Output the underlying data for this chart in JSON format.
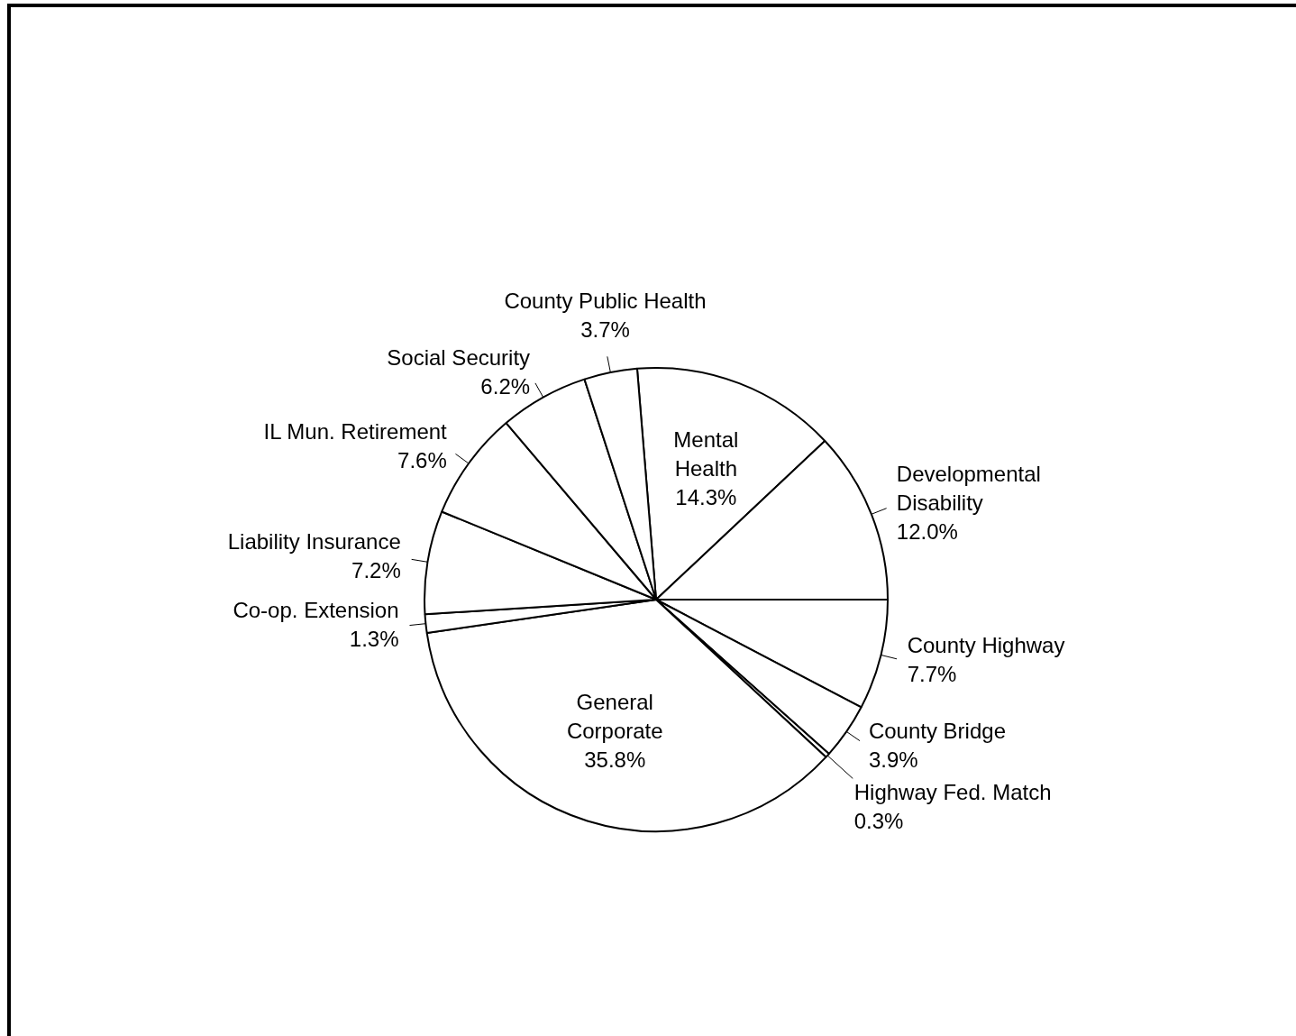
{
  "chart_data": {
    "type": "pie",
    "categories": [
      "Mental Health",
      "Developmental Disability",
      "County Highway",
      "County Bridge",
      "Highway Fed. Match",
      "General Corporate",
      "Co-op. Extension",
      "Liability Insurance",
      "IL Mun. Retirement",
      "Social Security",
      "County Public Health"
    ],
    "values": [
      14.3,
      12.0,
      7.7,
      3.9,
      0.3,
      35.8,
      1.3,
      7.2,
      7.6,
      6.2,
      3.7
    ],
    "value_labels": [
      "14.3%",
      "12.0%",
      "7.7%",
      "3.9%",
      "0.3%",
      "35.8%",
      "1.3%",
      "7.2%",
      "7.6%",
      "6.2%",
      "3.7%"
    ],
    "colors": [
      "#ffffff",
      "#ffffff",
      "#ffffff",
      "#ffffff",
      "#ffffff",
      "#ffffff",
      "#ffffff",
      "#ffffff",
      "#ffffff",
      "#ffffff",
      "#ffffff"
    ],
    "legend": false
  }
}
